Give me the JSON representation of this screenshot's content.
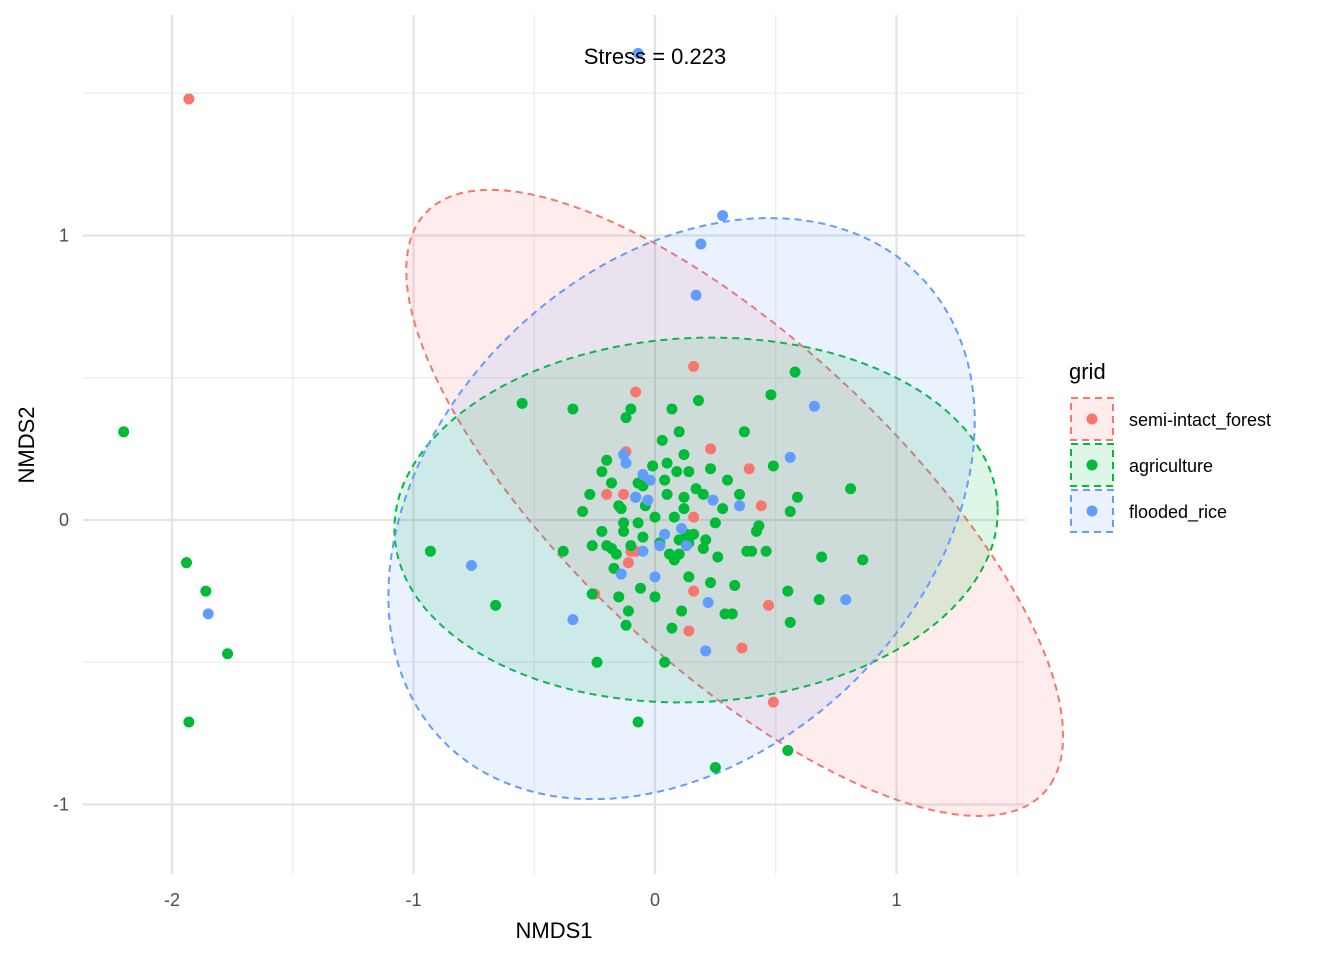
{
  "chart_data": {
    "type": "scatter",
    "title": "",
    "annotation": "Stress = 0.223",
    "xlabel": "NMDS1",
    "ylabel": "NMDS2",
    "xlim": [
      -2.32,
      1.52
    ],
    "ylim": [
      -1.24,
      1.75
    ],
    "xticks": [
      -2,
      -1,
      0,
      1
    ],
    "yticks": [
      -1,
      0,
      1
    ],
    "grid": true,
    "legend": {
      "title": "grid",
      "position": "right"
    },
    "series": [
      {
        "name": "semi-intact_forest",
        "color": "#F8766D",
        "points": [
          [
            -1.93,
            1.48
          ],
          [
            0.16,
            0.54
          ],
          [
            -0.08,
            0.45
          ],
          [
            0.23,
            0.25
          ],
          [
            -0.12,
            0.24
          ],
          [
            0.44,
            0.05
          ],
          [
            0.39,
            0.18
          ],
          [
            -0.2,
            0.09
          ],
          [
            0.16,
            0.01
          ],
          [
            -0.13,
            0.09
          ],
          [
            -0.08,
            -0.11
          ],
          [
            -0.1,
            -0.11
          ],
          [
            -0.11,
            -0.15
          ],
          [
            -0.25,
            -0.26
          ],
          [
            0.16,
            -0.25
          ],
          [
            0.14,
            -0.39
          ],
          [
            0.47,
            -0.3
          ],
          [
            0.36,
            -0.45
          ],
          [
            0.49,
            -0.64
          ]
        ]
      },
      {
        "name": "agriculture",
        "color": "#00BA38",
        "points": [
          [
            -2.2,
            0.31
          ],
          [
            -1.94,
            -0.15
          ],
          [
            -1.86,
            -0.25
          ],
          [
            -1.77,
            -0.47
          ],
          [
            -1.93,
            -0.71
          ],
          [
            -0.93,
            -0.11
          ],
          [
            -0.66,
            -0.3
          ],
          [
            -0.55,
            0.41
          ],
          [
            -0.34,
            0.39
          ],
          [
            -0.3,
            0.03
          ],
          [
            -0.38,
            -0.11
          ],
          [
            -0.26,
            -0.26
          ],
          [
            -0.24,
            -0.5
          ],
          [
            0.04,
            -0.5
          ],
          [
            -0.07,
            -0.71
          ],
          [
            0.25,
            -0.87
          ],
          [
            0.55,
            -0.81
          ],
          [
            0.58,
            0.52
          ],
          [
            0.81,
            0.11
          ],
          [
            0.86,
            -0.14
          ],
          [
            0.69,
            -0.13
          ],
          [
            0.68,
            -0.28
          ],
          [
            0.56,
            -0.36
          ],
          [
            0.56,
            0.03
          ],
          [
            0.59,
            0.08
          ],
          [
            0.49,
            0.19
          ],
          [
            0.48,
            0.44
          ],
          [
            0.37,
            0.31
          ],
          [
            0.42,
            -0.04
          ],
          [
            0.4,
            -0.11
          ],
          [
            0.32,
            -0.33
          ],
          [
            0.55,
            -0.25
          ],
          [
            -0.12,
            0.36
          ],
          [
            -0.1,
            0.39
          ],
          [
            0.07,
            0.39
          ],
          [
            0.18,
            0.42
          ],
          [
            0.1,
            0.31
          ],
          [
            0.03,
            0.28
          ],
          [
            0.12,
            0.23
          ],
          [
            -0.2,
            0.21
          ],
          [
            -0.22,
            0.17
          ],
          [
            -0.18,
            0.13
          ],
          [
            -0.15,
            0.05
          ],
          [
            -0.08,
            0.08
          ],
          [
            -0.05,
            0.12
          ],
          [
            0.05,
            0.2
          ],
          [
            0.09,
            0.17
          ],
          [
            0.14,
            0.17
          ],
          [
            0.17,
            0.11
          ],
          [
            0.23,
            0.18
          ],
          [
            0.3,
            0.14
          ],
          [
            0.35,
            0.09
          ],
          [
            0.28,
            0.04
          ],
          [
            0.25,
            -0.01
          ],
          [
            0.43,
            -0.02
          ],
          [
            0.46,
            -0.11
          ],
          [
            0.38,
            -0.11
          ],
          [
            0.33,
            -0.23
          ],
          [
            0.29,
            -0.33
          ],
          [
            -0.22,
            -0.04
          ],
          [
            -0.18,
            -0.1
          ],
          [
            -0.16,
            -0.12
          ],
          [
            -0.13,
            -0.04
          ],
          [
            -0.07,
            -0.01
          ],
          [
            -0.04,
            0.05
          ],
          [
            0.0,
            0.01
          ],
          [
            0.08,
            0.01
          ],
          [
            0.12,
            0.04
          ],
          [
            0.16,
            -0.05
          ],
          [
            0.21,
            -0.07
          ],
          [
            0.2,
            -0.1
          ],
          [
            0.14,
            -0.08
          ],
          [
            0.1,
            -0.12
          ],
          [
            0.06,
            -0.12
          ],
          [
            0.02,
            -0.08
          ],
          [
            -0.05,
            -0.06
          ],
          [
            -0.1,
            -0.09
          ],
          [
            -0.17,
            -0.17
          ],
          [
            -0.15,
            -0.27
          ],
          [
            -0.11,
            -0.32
          ],
          [
            -0.12,
            -0.37
          ],
          [
            -0.06,
            -0.24
          ],
          [
            0.0,
            -0.27
          ],
          [
            0.07,
            -0.38
          ],
          [
            0.11,
            -0.32
          ],
          [
            0.14,
            -0.2
          ],
          [
            0.23,
            -0.22
          ],
          [
            0.26,
            -0.13
          ],
          [
            -0.26,
            -0.09
          ],
          [
            -0.27,
            0.09
          ],
          [
            -0.14,
            0.04
          ],
          [
            -0.2,
            -0.09
          ],
          [
            0.08,
            -0.14
          ],
          [
            0.13,
            -0.05
          ],
          [
            0.04,
            0.14
          ],
          [
            -0.01,
            0.19
          ],
          [
            0.2,
            0.09
          ],
          [
            0.05,
            0.09
          ],
          [
            -0.07,
            0.13
          ],
          [
            0.12,
            0.08
          ],
          [
            0.1,
            -0.07
          ],
          [
            -0.13,
            -0.01
          ]
        ]
      },
      {
        "name": "flooded_rice",
        "color": "#619CFF",
        "points": [
          [
            -0.07,
            1.64
          ],
          [
            0.28,
            1.07
          ],
          [
            0.19,
            0.97
          ],
          [
            0.17,
            0.79
          ],
          [
            0.66,
            0.4
          ],
          [
            0.56,
            0.22
          ],
          [
            0.79,
            -0.28
          ],
          [
            -1.85,
            -0.33
          ],
          [
            -0.76,
            -0.16
          ],
          [
            -0.34,
            -0.35
          ],
          [
            0.21,
            -0.46
          ],
          [
            0.22,
            -0.29
          ],
          [
            0.35,
            0.05
          ],
          [
            0.24,
            0.07
          ],
          [
            -0.13,
            0.23
          ],
          [
            -0.12,
            0.2
          ],
          [
            -0.05,
            0.16
          ],
          [
            -0.02,
            0.14
          ],
          [
            -0.08,
            0.08
          ],
          [
            -0.03,
            0.07
          ],
          [
            0.11,
            -0.03
          ],
          [
            0.04,
            -0.05
          ],
          [
            0.02,
            -0.09
          ],
          [
            -0.05,
            -0.11
          ],
          [
            0.0,
            -0.2
          ],
          [
            -0.14,
            -0.19
          ],
          [
            0.13,
            -0.09
          ]
        ]
      }
    ],
    "ellipses": [
      {
        "series": "semi-intact_forest",
        "color": "#F8766D",
        "center": [
          0.33,
          0.06
        ],
        "semi_axes": [
          1.64,
          0.61
        ],
        "rotation_deg": -37
      },
      {
        "series": "agriculture",
        "color": "#00BA38",
        "center": [
          0.17,
          0.0
        ],
        "semi_axes": [
          1.25,
          0.64
        ],
        "rotation_deg": 2
      },
      {
        "series": "flooded_rice",
        "color": "#619CFF",
        "center": [
          0.11,
          0.04
        ],
        "semi_axes": [
          1.3,
          0.91
        ],
        "rotation_deg": 30
      }
    ]
  }
}
